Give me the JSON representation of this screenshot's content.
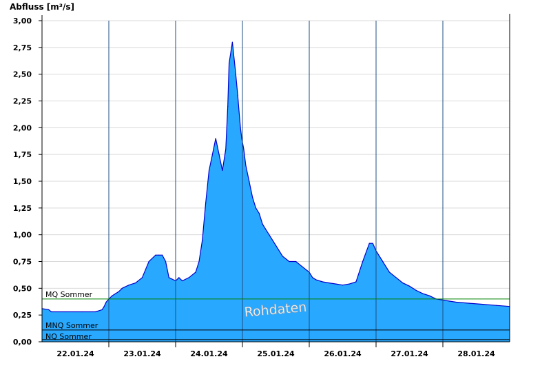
{
  "chart_data": {
    "type": "area",
    "ylabel": "Abfluss [m³/s]",
    "watermark": "Rohdaten",
    "xlim": [
      0,
      7
    ],
    "ylim": [
      0,
      3
    ],
    "yticks": [
      0,
      0.25,
      0.5,
      0.75,
      1.0,
      1.25,
      1.5,
      1.75,
      2.0,
      2.25,
      2.5,
      2.75,
      3.0
    ],
    "ytick_labels": [
      "0,00",
      "0,25",
      "0,50",
      "0,75",
      "1,00",
      "1,25",
      "1,50",
      "1,75",
      "2,00",
      "2,25",
      "2,50",
      "2,75",
      "3,00"
    ],
    "x_unit": "days since 21.01.24 18:00",
    "day_boundaries": [
      1,
      2,
      3,
      4,
      5,
      6
    ],
    "xtick_labels": [
      {
        "x": 0.5,
        "label": "22.01.24"
      },
      {
        "x": 1.5,
        "label": "23.01.24"
      },
      {
        "x": 2.5,
        "label": "24.01.24"
      },
      {
        "x": 3.5,
        "label": "25.01.24"
      },
      {
        "x": 4.5,
        "label": "26.01.24"
      },
      {
        "x": 5.5,
        "label": "27.01.24"
      },
      {
        "x": 6.5,
        "label": "28.01.24"
      }
    ],
    "reference_lines": [
      {
        "name": "MQ Sommer",
        "value": 0.4,
        "color": "#008000"
      },
      {
        "name": "MNQ Sommer",
        "value": 0.11,
        "color": "#000000"
      },
      {
        "name": "NQ Sommer",
        "value": 0.02,
        "color": "#000000"
      }
    ],
    "colors": {
      "fill": "#29a8ff",
      "line": "#0000cc",
      "grid": "#d9d9d9",
      "day_separator": "#1c4e80"
    },
    "grid": true,
    "series": [
      {
        "x": [
          0.0,
          0.1,
          0.14,
          0.35,
          0.6,
          0.8,
          0.9,
          0.93,
          0.96,
          1.0,
          1.05,
          1.1,
          1.15,
          1.2,
          1.3,
          1.4,
          1.5,
          1.6,
          1.7,
          1.75,
          1.8,
          1.85,
          1.9,
          2.0,
          2.05,
          2.1,
          2.2,
          2.3,
          2.35,
          2.4,
          2.45,
          2.5,
          2.55,
          2.6,
          2.65,
          2.7,
          2.75,
          2.78,
          2.8,
          2.85,
          2.9,
          2.93,
          2.95,
          2.97,
          2.99,
          3.02,
          3.05,
          3.1,
          3.15,
          3.2,
          3.25,
          3.3,
          3.35,
          3.4,
          3.5,
          3.6,
          3.7,
          3.8,
          3.9,
          4.0,
          4.05,
          4.1,
          4.2,
          4.3,
          4.4,
          4.5,
          4.6,
          4.7,
          4.8,
          4.9,
          4.95,
          5.0,
          5.1,
          5.2,
          5.3,
          5.4,
          5.5,
          5.6,
          5.7,
          5.8,
          5.9,
          6.0,
          6.1,
          6.2,
          6.4,
          6.6,
          6.8,
          7.0
        ],
        "y": [
          0.31,
          0.3,
          0.28,
          0.28,
          0.28,
          0.28,
          0.3,
          0.33,
          0.37,
          0.4,
          0.43,
          0.45,
          0.47,
          0.5,
          0.53,
          0.55,
          0.6,
          0.75,
          0.81,
          0.81,
          0.81,
          0.75,
          0.6,
          0.57,
          0.6,
          0.57,
          0.6,
          0.65,
          0.75,
          0.95,
          1.3,
          1.6,
          1.75,
          1.9,
          1.75,
          1.6,
          1.8,
          2.2,
          2.6,
          2.8,
          2.5,
          2.3,
          2.15,
          2.0,
          1.9,
          1.8,
          1.65,
          1.5,
          1.35,
          1.25,
          1.2,
          1.1,
          1.05,
          1.0,
          0.9,
          0.8,
          0.75,
          0.75,
          0.7,
          0.65,
          0.6,
          0.58,
          0.56,
          0.55,
          0.54,
          0.53,
          0.54,
          0.56,
          0.75,
          0.92,
          0.92,
          0.85,
          0.75,
          0.65,
          0.6,
          0.55,
          0.52,
          0.48,
          0.45,
          0.43,
          0.4,
          0.39,
          0.38,
          0.37,
          0.36,
          0.35,
          0.34,
          0.33
        ]
      }
    ]
  }
}
